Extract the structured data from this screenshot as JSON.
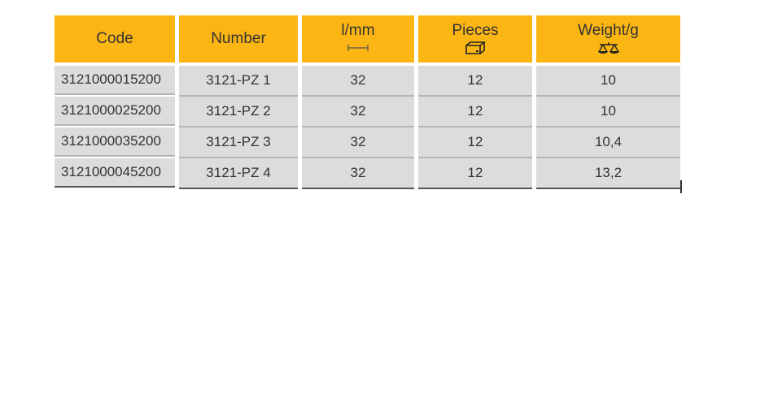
{
  "table": {
    "headers": [
      {
        "label": "Code"
      },
      {
        "label": "Number"
      },
      {
        "label": "l/mm",
        "icon": "length-dimension-icon"
      },
      {
        "label": "Pieces",
        "icon": "box-icon"
      },
      {
        "label": "Weight/g",
        "icon": "scale-icon"
      }
    ],
    "rows": [
      [
        "3121000015200",
        "3121-PZ 1",
        "32",
        "12",
        "10"
      ],
      [
        "3121000025200",
        "3121-PZ 2",
        "32",
        "12",
        "10"
      ],
      [
        "3121000035200",
        "3121-PZ 3",
        "32",
        "12",
        "10,4"
      ],
      [
        "3121000045200",
        "3121-PZ 4",
        "32",
        "12",
        "13,2"
      ]
    ],
    "colors": {
      "header": "#fcb614",
      "cell": "#dcdcdc"
    }
  }
}
